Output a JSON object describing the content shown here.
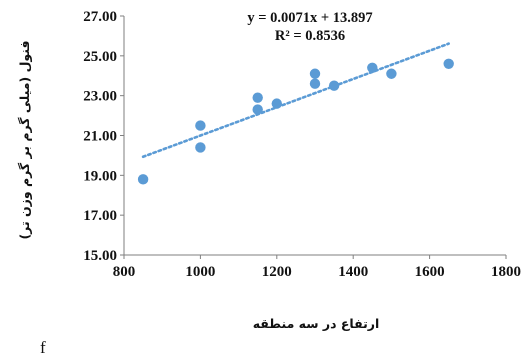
{
  "chart_data": {
    "type": "scatter",
    "title": "",
    "xlabel": "ارتفاع در سه منطقه",
    "ylabel": "فنول (میلی گرم بر گرم وزن تر)",
    "xlim": [
      800,
      1800
    ],
    "ylim": [
      15.0,
      27.0
    ],
    "x_ticks": [
      "800",
      "1000",
      "1200",
      "1400",
      "1600",
      "1800"
    ],
    "y_ticks": [
      "15.00",
      "17.00",
      "19.00",
      "21.00",
      "23.00",
      "25.00",
      "27.00"
    ],
    "grid": false,
    "legend": "none",
    "marker_color": "#5b9bd5",
    "trendline_color": "#5b9bd5",
    "points": [
      {
        "x": 850,
        "y": 18.8
      },
      {
        "x": 1000,
        "y": 21.5
      },
      {
        "x": 1000,
        "y": 20.4
      },
      {
        "x": 1150,
        "y": 22.9
      },
      {
        "x": 1150,
        "y": 22.3
      },
      {
        "x": 1200,
        "y": 22.6
      },
      {
        "x": 1300,
        "y": 24.1
      },
      {
        "x": 1300,
        "y": 23.6
      },
      {
        "x": 1350,
        "y": 23.5
      },
      {
        "x": 1450,
        "y": 24.4
      },
      {
        "x": 1500,
        "y": 24.1
      },
      {
        "x": 1650,
        "y": 24.6
      }
    ],
    "trendline": {
      "slope": 0.0071,
      "intercept": 13.897,
      "x_range": [
        850,
        1650
      ]
    },
    "equation_label": "y = 0.0071x + 13.897",
    "r2_label": "R² = 0.8536"
  },
  "corner_label": "f"
}
